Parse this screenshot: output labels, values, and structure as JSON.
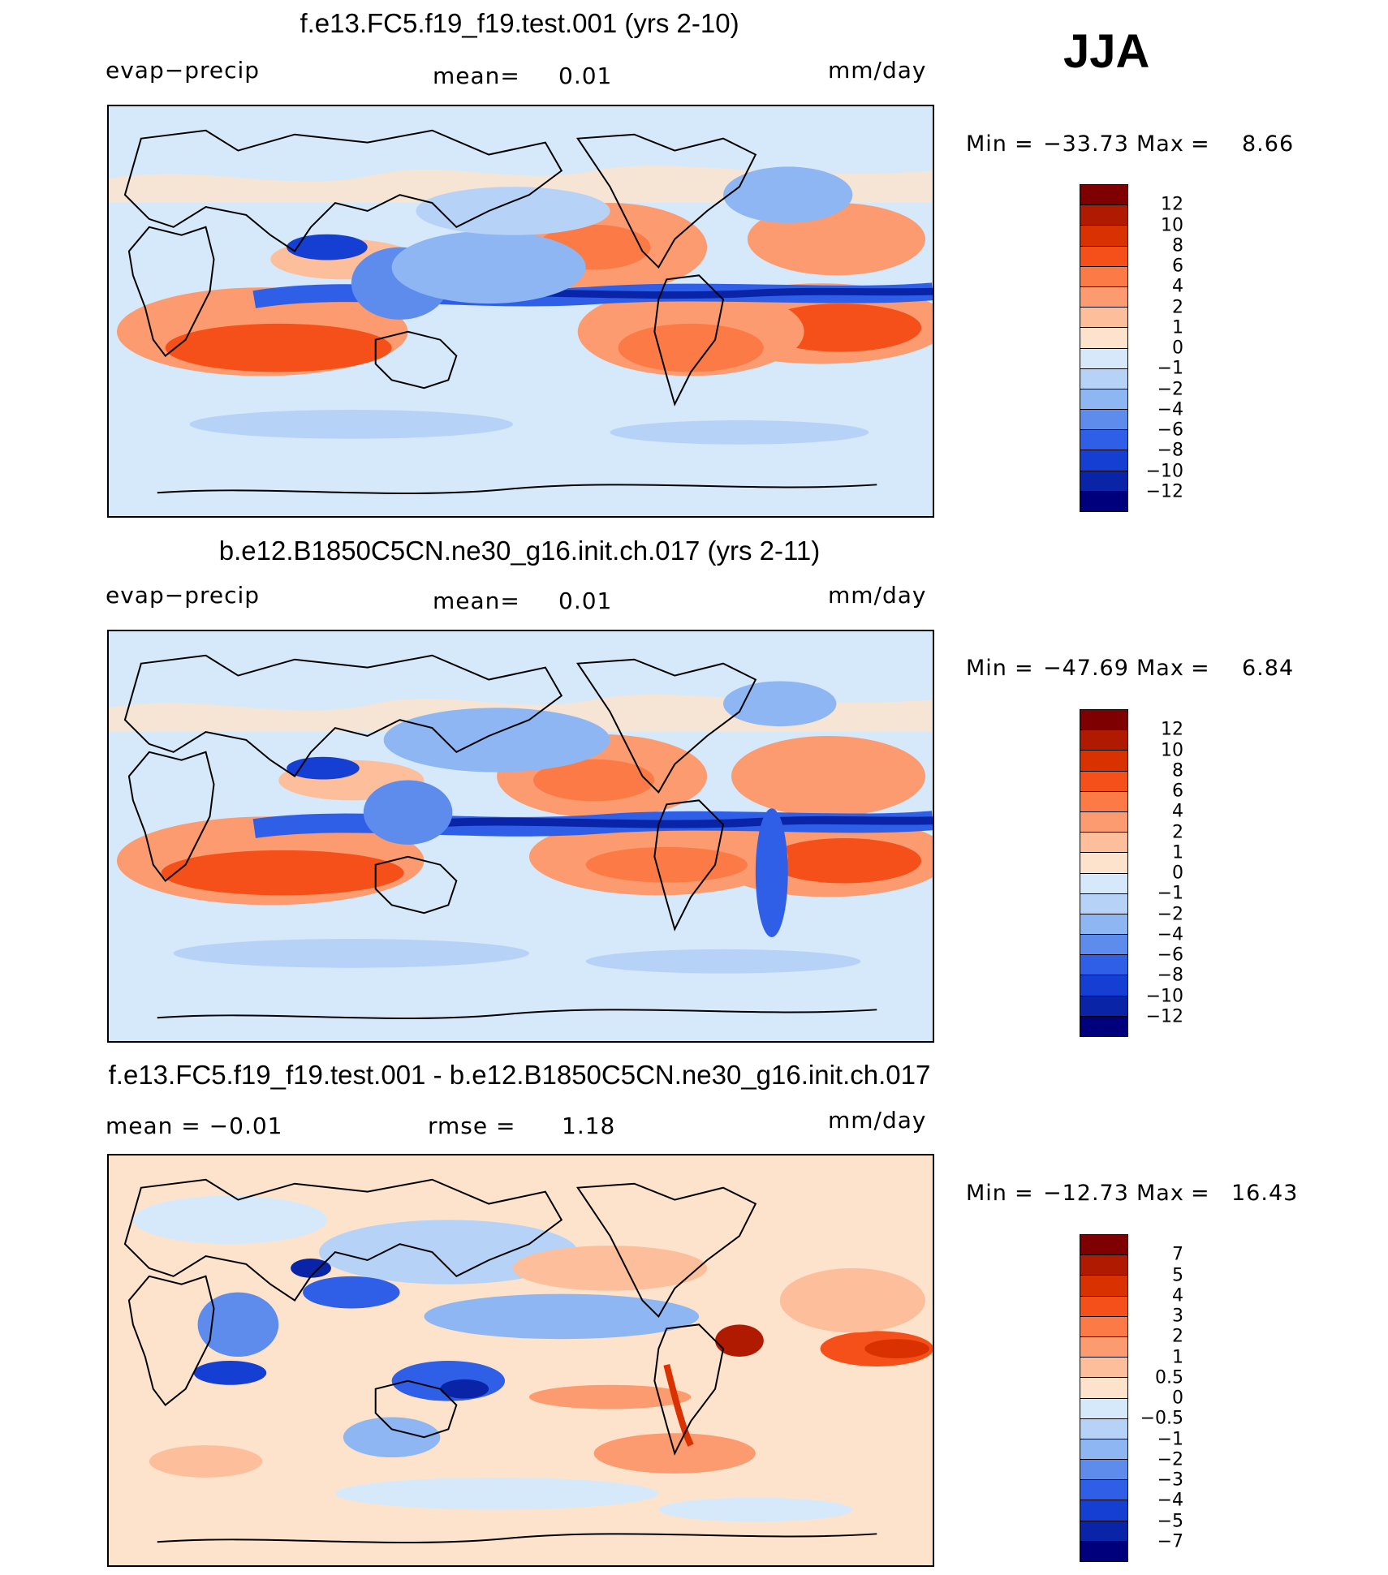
{
  "season": "JJA",
  "units": "mm/day",
  "panels": [
    {
      "title": "f.e13.FC5.f19_f19.test.001 (yrs 2-10)",
      "variable": "evap−precip",
      "stat_left": "",
      "mean_label": "mean=",
      "mean_value": "0.01",
      "units": "mm/day",
      "min_label": "Min",
      "min_value": "−33.73",
      "max_label": "Max",
      "max_value": "8.66"
    },
    {
      "title": "b.e12.B1850C5CN.ne30_g16.init.ch.017 (yrs 2-11)",
      "variable": "evap−precip",
      "stat_left": "",
      "mean_label": "mean=",
      "mean_value": "0.01",
      "units": "mm/day",
      "min_label": "Min",
      "min_value": "−47.69",
      "max_label": "Max",
      "max_value": "6.84"
    },
    {
      "title": "f.e13.FC5.f19_f19.test.001 - b.e12.B1850C5CN.ne30_g16.init.ch.017",
      "variable": "",
      "stat_left": "mean  =   −0.01",
      "mean_label": "rmse  =",
      "mean_value": "1.18",
      "units": "mm/day",
      "min_label": "Min",
      "min_value": "−12.73",
      "max_label": "Max",
      "max_value": "16.43"
    }
  ],
  "colorbar_main": {
    "labels": [
      "12",
      "10",
      "8",
      "6",
      "4",
      "2",
      "1",
      "0",
      "−1",
      "−2",
      "−4",
      "−6",
      "−8",
      "−10",
      "−12"
    ],
    "colors": [
      "#7f0000",
      "#b01a00",
      "#d93200",
      "#f5501a",
      "#fc7a45",
      "#fc9b70",
      "#fdbe9c",
      "#fee3cc",
      "#d6e9fb",
      "#b6d3f7",
      "#8db6f2",
      "#5d8cec",
      "#2f5fe6",
      "#143fd2",
      "#0a24a8",
      "#00007d"
    ]
  },
  "colorbar_diff": {
    "labels": [
      "7",
      "5",
      "4",
      "3",
      "2",
      "1",
      "0.5",
      "0",
      "−0.5",
      "−1",
      "−2",
      "−3",
      "−4",
      "−5",
      "−7"
    ],
    "colors": [
      "#7f0000",
      "#b01a00",
      "#d93200",
      "#f5501a",
      "#fc7a45",
      "#fc9b70",
      "#fdbe9c",
      "#fee3cc",
      "#d6e9fb",
      "#b6d3f7",
      "#8db6f2",
      "#5d8cec",
      "#2f5fe6",
      "#143fd2",
      "#0a24a8",
      "#00007d"
    ]
  }
}
